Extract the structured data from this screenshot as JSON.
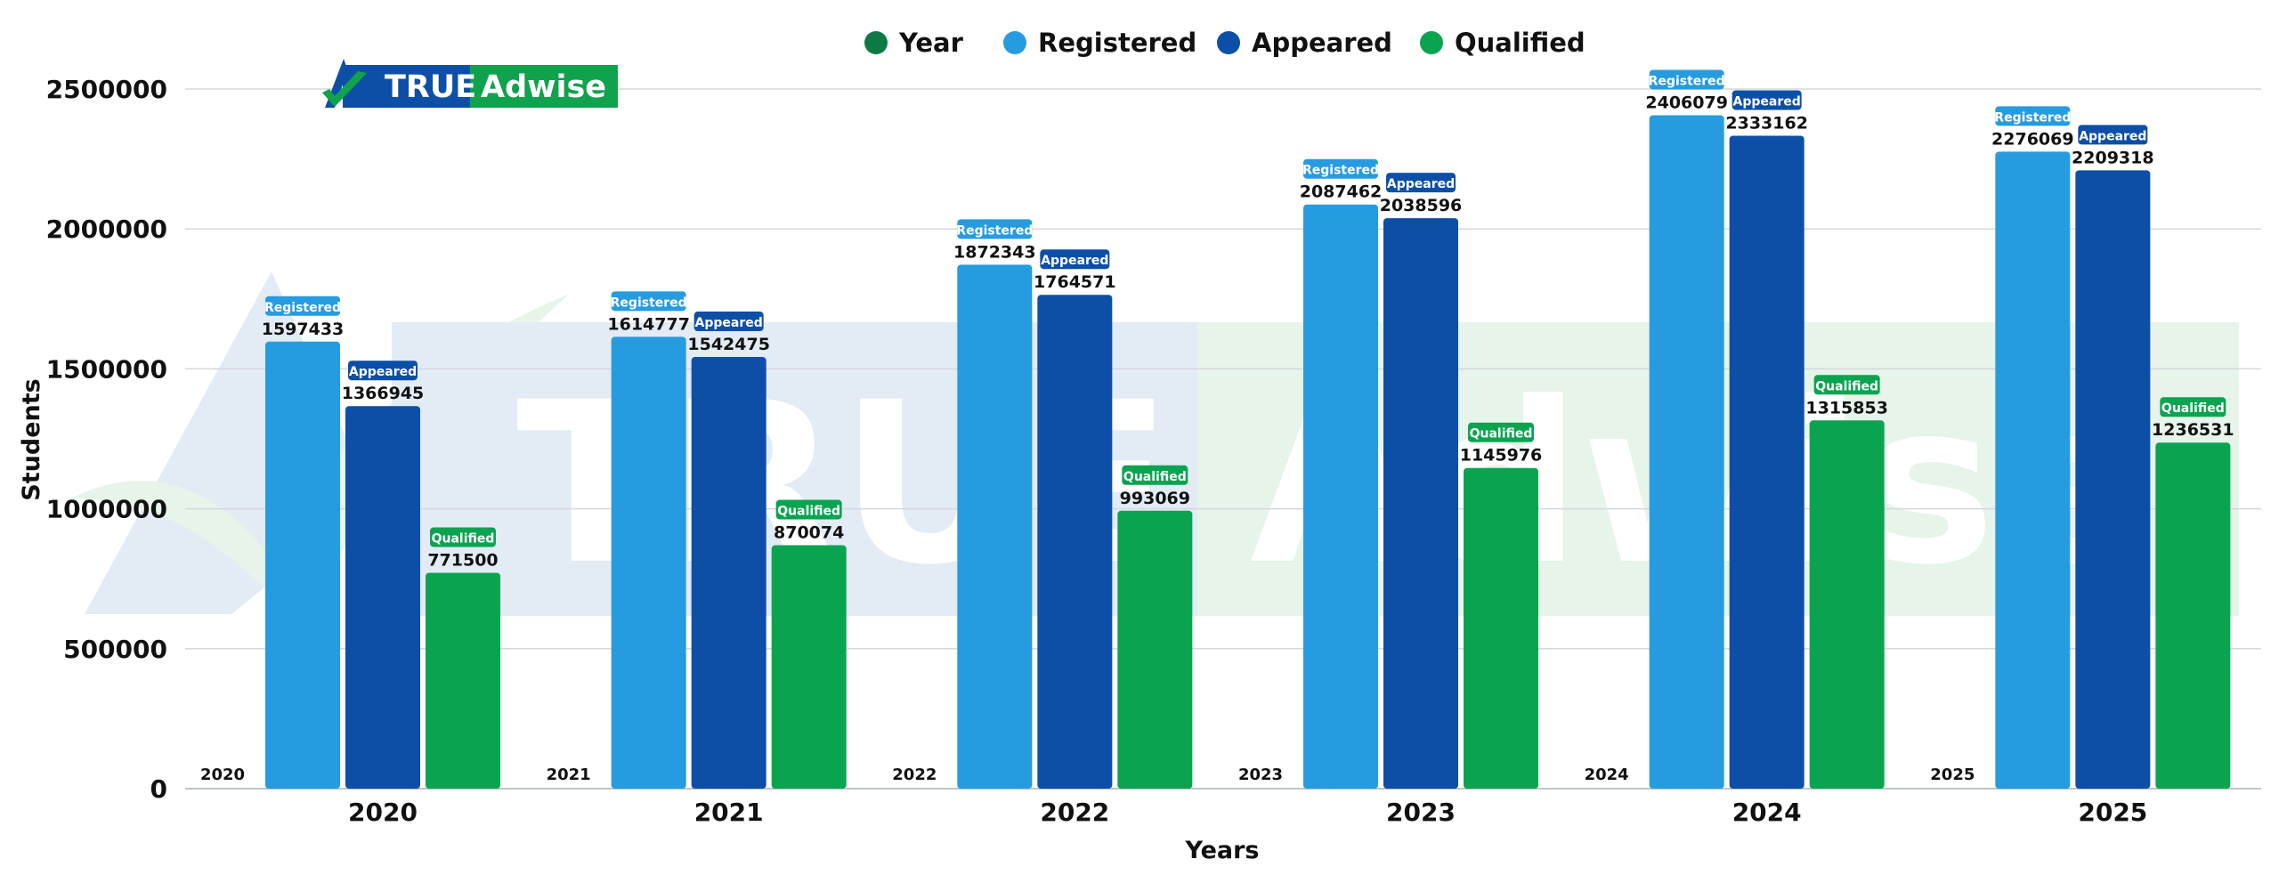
{
  "logo": {
    "text_a": "TRUE",
    "text_b": "Adwise"
  },
  "watermark": {
    "text": "TRUE Adwise"
  },
  "colors": {
    "year": "#0e7a43",
    "registered": "#279be0",
    "appeared": "#0d4fa6",
    "qualified": "#0aa451",
    "grid": "#d5d8dc",
    "watermark_blue": "#e3ebf5",
    "watermark_green": "#e6f4ea"
  },
  "chart_data": {
    "type": "bar",
    "xlabel": "Years",
    "ylabel": "Students",
    "ylim": [
      0,
      2500000
    ],
    "yticks": [
      0,
      500000,
      1000000,
      1500000,
      2000000,
      2500000
    ],
    "ytick_labels": [
      "0",
      "500000",
      "1000000",
      "1500000",
      "2000000",
      "2500000"
    ],
    "grid": true,
    "legend_position": "top-center",
    "categories": [
      "2020",
      "2021",
      "2022",
      "2023",
      "2024",
      "2025"
    ],
    "series": [
      {
        "name": "Year",
        "values": [
          "2020",
          "2021",
          "2022",
          "2023",
          "2024",
          "2025"
        ]
      },
      {
        "name": "Registered",
        "values": [
          1597433,
          1614777,
          1872343,
          2087462,
          2406079,
          2276069
        ]
      },
      {
        "name": "Appeared",
        "values": [
          1366945,
          1542475,
          1764571,
          2038596,
          2333162,
          2209318
        ]
      },
      {
        "name": "Qualified",
        "values": [
          771500,
          870074,
          993069,
          1145976,
          1315853,
          1236531
        ]
      }
    ]
  }
}
